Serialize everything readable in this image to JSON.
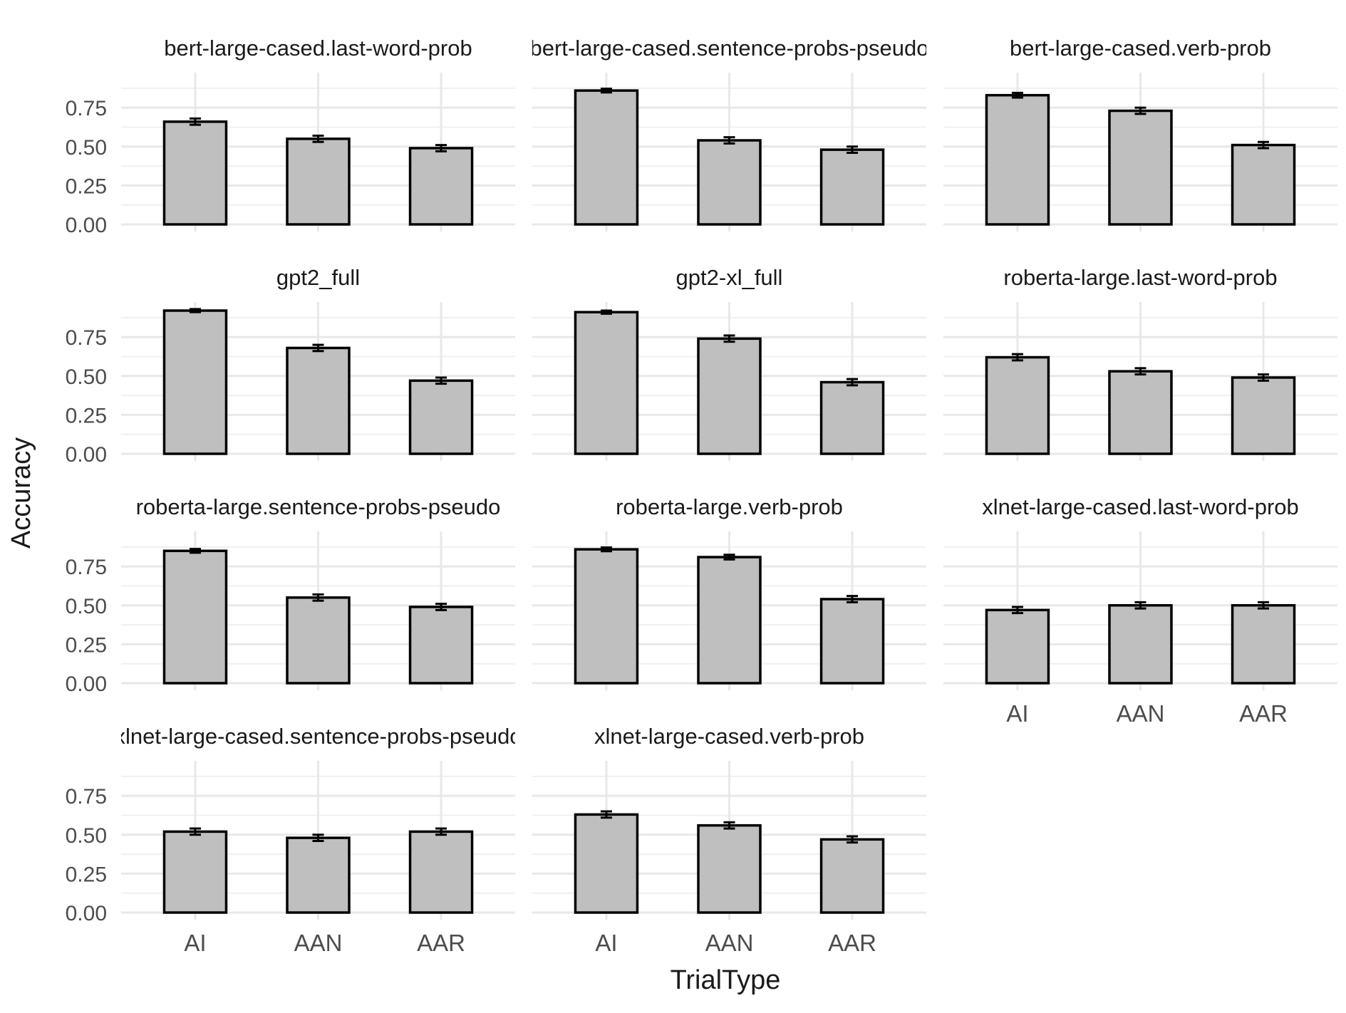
{
  "chart_data": {
    "type": "bar",
    "layout": "facet-grid",
    "xlabel": "TrialType",
    "ylabel": "Accuracy",
    "categories": [
      "AI",
      "AAN",
      "AAR"
    ],
    "ylim": [
      0,
      0.92
    ],
    "yticks": [
      0.0,
      0.25,
      0.5,
      0.75
    ],
    "ytick_labels": [
      "0.00",
      "0.25",
      "0.50",
      "0.75"
    ],
    "grid": true,
    "colors": {
      "bar_fill": "#bfbfbf",
      "bar_stroke": "#000000",
      "grid": "#e8e8e8",
      "text": "#4d4d4d",
      "title": "#1a1a1a"
    },
    "panels": [
      {
        "title": "bert-large-cased.last-word-prob",
        "values": [
          0.66,
          0.55,
          0.49
        ],
        "errors": [
          0.02,
          0.02,
          0.02
        ]
      },
      {
        "title": "bert-large-cased.sentence-probs-pseudo",
        "values": [
          0.86,
          0.54,
          0.48
        ],
        "errors": [
          0.012,
          0.02,
          0.02
        ]
      },
      {
        "title": "bert-large-cased.verb-prob",
        "values": [
          0.83,
          0.73,
          0.51
        ],
        "errors": [
          0.015,
          0.02,
          0.02
        ]
      },
      {
        "title": "gpt2_full",
        "values": [
          0.92,
          0.68,
          0.47
        ],
        "errors": [
          0.01,
          0.02,
          0.02
        ]
      },
      {
        "title": "gpt2-xl_full",
        "values": [
          0.91,
          0.74,
          0.46
        ],
        "errors": [
          0.01,
          0.02,
          0.02
        ]
      },
      {
        "title": "roberta-large.last-word-prob",
        "values": [
          0.62,
          0.53,
          0.49
        ],
        "errors": [
          0.02,
          0.02,
          0.02
        ]
      },
      {
        "title": "roberta-large.sentence-probs-pseudo",
        "values": [
          0.85,
          0.55,
          0.49
        ],
        "errors": [
          0.012,
          0.02,
          0.02
        ]
      },
      {
        "title": "roberta-large.verb-prob",
        "values": [
          0.86,
          0.81,
          0.54
        ],
        "errors": [
          0.012,
          0.015,
          0.02
        ]
      },
      {
        "title": "xlnet-large-cased.last-word-prob",
        "values": [
          0.47,
          0.5,
          0.5
        ],
        "errors": [
          0.02,
          0.02,
          0.02
        ]
      },
      {
        "title": "xlnet-large-cased.sentence-probs-pseudo",
        "values": [
          0.52,
          0.48,
          0.52
        ],
        "errors": [
          0.02,
          0.02,
          0.02
        ]
      },
      {
        "title": "xlnet-large-cased.verb-prob",
        "values": [
          0.63,
          0.56,
          0.47
        ],
        "errors": [
          0.02,
          0.02,
          0.02
        ]
      }
    ]
  }
}
